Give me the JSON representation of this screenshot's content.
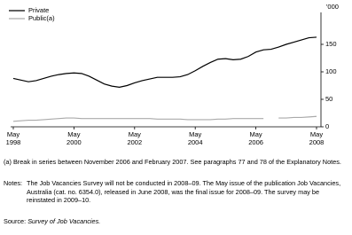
{
  "chart_data": {
    "type": "line",
    "y_label": "'000",
    "categories": [
      "May 1998",
      null,
      null,
      null,
      null,
      null,
      null,
      null,
      "May 2000",
      null,
      null,
      null,
      null,
      null,
      null,
      null,
      "May 2002",
      null,
      null,
      null,
      null,
      null,
      null,
      null,
      "May 2004",
      null,
      null,
      null,
      null,
      null,
      null,
      null,
      "May 2006",
      null,
      null,
      null,
      null,
      null,
      null,
      null,
      "May 2008"
    ],
    "series": [
      {
        "name": "Private",
        "color": "#000000",
        "values": [
          88,
          85,
          82,
          84,
          88,
          92,
          95,
          97,
          98,
          97,
          92,
          85,
          78,
          74,
          72,
          75,
          80,
          84,
          87,
          90,
          90,
          90,
          91,
          95,
          102,
          110,
          117,
          123,
          124,
          122,
          123,
          128,
          136,
          140,
          141,
          145,
          150,
          154,
          158,
          162,
          163
        ]
      },
      {
        "name": "Public(a)",
        "color": "#aaaaaa",
        "values": [
          10,
          11,
          12,
          12,
          13,
          14,
          15,
          16,
          16,
          15,
          15,
          15,
          15,
          15,
          15,
          15,
          15,
          15,
          15,
          14,
          14,
          14,
          14,
          13,
          13,
          13,
          13,
          14,
          14,
          15,
          15,
          15,
          15,
          15,
          null,
          16,
          16,
          17,
          17,
          18,
          19
        ]
      }
    ],
    "ylim": [
      0,
      200
    ],
    "yticks": [
      0,
      50,
      100,
      150
    ],
    "grid": false,
    "legend": "top-left",
    "footnote": "(a) Break in series between November 2006 and February 2007. See paragraphs 77 and 78 of the Explanatory Notes.",
    "notes_label": "Notes:",
    "notes": "The Job Vacancies Survey will not be conducted in 2008–09. The May issue of the publication Job Vacancies, Australia (cat. no. 6354.0), released in June 2008, was the final issue for 2008–09. The survey may be reinstated in 2009–10.",
    "source_label": "Source:",
    "source": "Survey of Job Vacancies."
  }
}
